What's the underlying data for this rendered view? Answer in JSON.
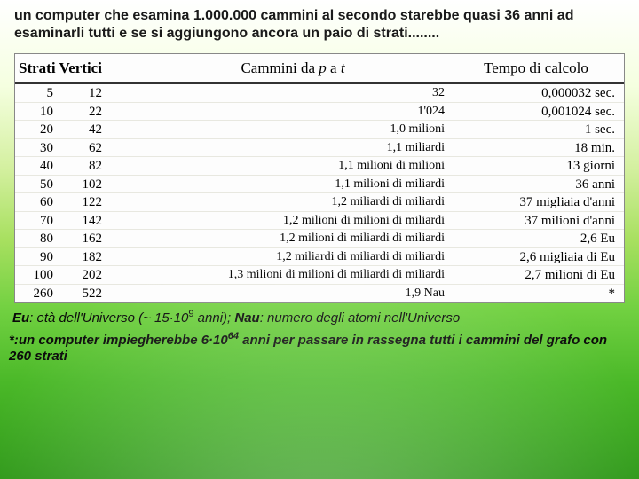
{
  "intro": "un computer che esamina 1.000.000 cammini al secondo starebbe quasi 36 anni ad esaminarli tutti e se si aggiungono ancora un paio di strati........",
  "header": {
    "c1": "Strati  Vertici",
    "c2_pre": "Cammini da ",
    "c2_p": "p",
    "c2_mid": " a ",
    "c2_t": "t",
    "c3": "Tempo di calcolo"
  },
  "rows": [
    {
      "s": "5",
      "v": "12",
      "p": "32",
      "t": "0,000032 sec."
    },
    {
      "s": "10",
      "v": "22",
      "p": "1'024",
      "t": "0,001024 sec."
    },
    {
      "s": "20",
      "v": "42",
      "p": "1,0 milioni",
      "t": "1 sec."
    },
    {
      "s": "30",
      "v": "62",
      "p": "1,1 miliardi",
      "t": "18 min."
    },
    {
      "s": "40",
      "v": "82",
      "p": "1,1 milioni di milioni",
      "t": "13 giorni"
    },
    {
      "s": "50",
      "v": "102",
      "p": "1,1 milioni di miliardi",
      "t": "36 anni"
    },
    {
      "s": "60",
      "v": "122",
      "p": "1,2 miliardi di miliardi",
      "t": "37 migliaia d'anni"
    },
    {
      "s": "70",
      "v": "142",
      "p": "1,2 milioni di milioni di miliardi",
      "t": "37 milioni d'anni"
    },
    {
      "s": "80",
      "v": "162",
      "p": "1,2 milioni di miliardi di miliardi",
      "t": "2,6 Eu"
    },
    {
      "s": "90",
      "v": "182",
      "p": "1,2 miliardi di miliardi di miliardi",
      "t": "2,6 migliaia di Eu"
    },
    {
      "s": "100",
      "v": "202",
      "p": "1,3 milioni di milioni di miliardi di miliardi",
      "t": "2,7 milioni di Eu"
    },
    {
      "s": "260",
      "v": "522",
      "p": "1,9 Nau",
      "t": "*"
    }
  ],
  "legend": {
    "eu_label": "Eu",
    "eu_text": ": età dell'Universo (~ 15·10",
    "eu_exp": "9",
    "eu_tail": " anni); ",
    "nau_label": "Nau",
    "nau_text": ": numero degli atomi nell'Universo"
  },
  "footnote": {
    "star": "*:",
    "t1": "un computer impiegherebbe 6·10",
    "exp": "64",
    "t2": " anni per passare in rassegna tutti i cammini del grafo con 260 strati"
  },
  "colors": {
    "text": "#1a1a1a",
    "tableBg": "#fdfdfd",
    "border": "#888888",
    "headBorder": "#333333",
    "rowBorder": "#e8e8e0"
  }
}
